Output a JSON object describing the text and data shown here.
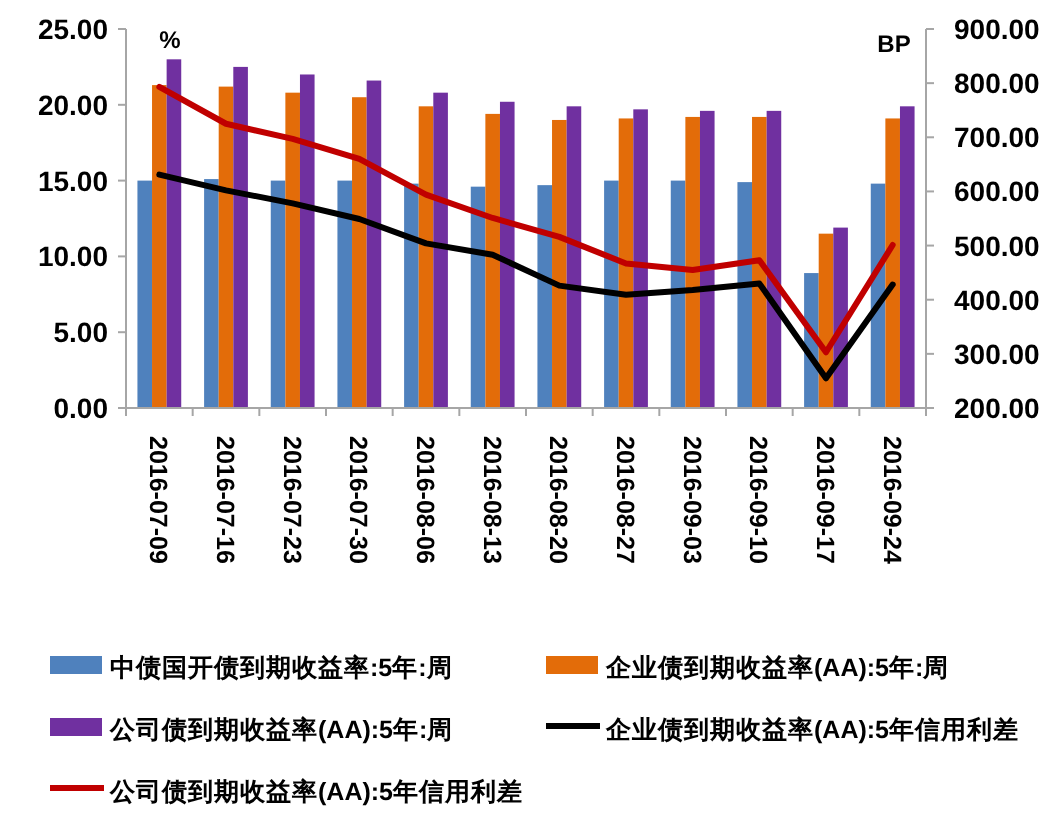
{
  "chart_data": {
    "type": "bar",
    "ylabel": "%",
    "y2label": "BP",
    "categories": [
      "2016-07-09",
      "2016-07-16",
      "2016-07-23",
      "2016-07-30",
      "2016-08-06",
      "2016-08-13",
      "2016-08-20",
      "2016-08-27",
      "2016-09-03",
      "2016-09-10",
      "2016-09-17",
      "2016-09-24"
    ],
    "series": [
      {
        "name": "中债国开债到期收益率:5年:周",
        "color": "#4f81bd",
        "values": [
          15.0,
          15.1,
          15.0,
          15.0,
          14.8,
          14.6,
          14.7,
          15.0,
          15.0,
          14.9,
          8.9,
          14.8
        ]
      },
      {
        "name": "企业债到期收益率(AA):5年:周",
        "color": "#e36c09",
        "values": [
          21.3,
          21.2,
          20.8,
          20.5,
          19.9,
          19.4,
          19.0,
          19.1,
          19.2,
          19.2,
          11.5,
          19.1
        ]
      },
      {
        "name": "公司债到期收益率(AA):5年:周",
        "color": "#7030a0",
        "values": [
          23.0,
          22.5,
          22.0,
          21.6,
          20.8,
          20.2,
          19.9,
          19.7,
          19.6,
          19.6,
          11.9,
          19.9
        ]
      },
      {
        "name": "企业债到期收益率(AA):5年信用利差",
        "type": "line",
        "axis": "y2",
        "color": "#000000",
        "values": [
          631,
          602,
          578,
          549,
          504,
          483,
          426,
          409,
          418,
          430,
          255,
          428
        ]
      },
      {
        "name": "公司债到期收益率(AA):5年信用利差",
        "type": "line",
        "axis": "y2",
        "color": "#c00000",
        "values": [
          793,
          725,
          697,
          660,
          594,
          551,
          516,
          467,
          455,
          473,
          303,
          501
        ]
      }
    ],
    "ylim": [
      0,
      25
    ],
    "yticks": [
      {
        "value": 0,
        "label": "0.00"
      },
      {
        "value": 5,
        "label": "5.00"
      },
      {
        "value": 10,
        "label": "10.00"
      },
      {
        "value": 15,
        "label": "15.00"
      },
      {
        "value": 20,
        "label": "20.00"
      },
      {
        "value": 25,
        "label": "25.00"
      }
    ],
    "y2lim": [
      200,
      900
    ],
    "y2ticks": [
      {
        "value": 200,
        "label": "200.00"
      },
      {
        "value": 300,
        "label": "300.00"
      },
      {
        "value": 400,
        "label": "400.00"
      },
      {
        "value": 500,
        "label": "500.00"
      },
      {
        "value": 600,
        "label": "600.00"
      },
      {
        "value": 700,
        "label": "700.00"
      },
      {
        "value": 800,
        "label": "800.00"
      },
      {
        "value": 900,
        "label": "900.00"
      }
    ],
    "legend": "bottom"
  }
}
